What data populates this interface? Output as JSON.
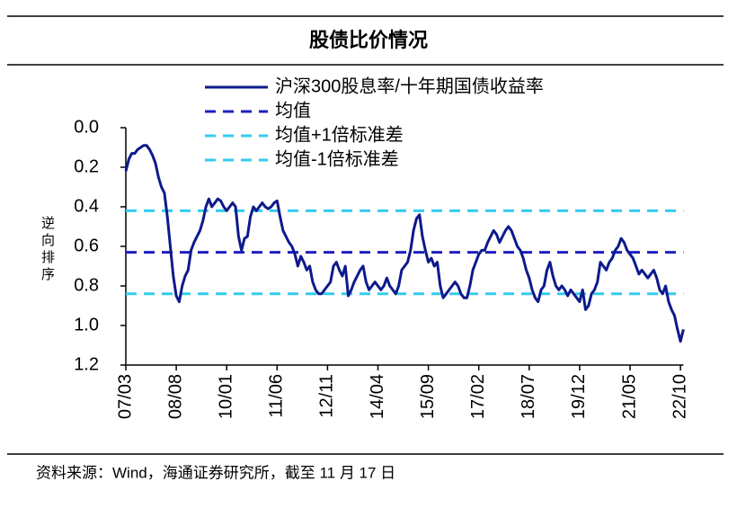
{
  "chart_data": {
    "type": "line",
    "title": "股债比价情况",
    "y_label": "逆向排序",
    "source": "资料来源：Wind，海通证券研究所，截至 11 月 17 日",
    "inverted_y": true,
    "ylim": [
      0,
      1.2
    ],
    "yticks": [
      {
        "value": 0,
        "label": "0.0"
      },
      0.2,
      0.4,
      0.6,
      0.8,
      {
        "value": 1,
        "label": "1.0"
      },
      1.2
    ],
    "x": [
      "07/03",
      "07/04",
      "07/05",
      "07/06",
      "07/07",
      "07/08",
      "07/09",
      "07/10",
      "07/11",
      "07/12",
      "08/01",
      "08/02",
      "08/03",
      "08/04",
      "08/05",
      "08/06",
      "08/07",
      "08/08",
      "08/09",
      "08/10",
      "08/11",
      "08/12",
      "09/01",
      "09/02",
      "09/03",
      "09/04",
      "09/05",
      "09/06",
      "09/07",
      "09/08",
      "09/09",
      "09/10",
      "09/11",
      "09/12",
      "10/01",
      "10/02",
      "10/03",
      "10/04",
      "10/05",
      "10/06",
      "10/07",
      "10/08",
      "10/09",
      "10/10",
      "10/11",
      "10/12",
      "11/01",
      "11/02",
      "11/03",
      "11/04",
      "11/05",
      "11/06",
      "11/07",
      "11/08",
      "11/09",
      "11/10",
      "11/11",
      "11/12",
      "12/01",
      "12/02",
      "12/03",
      "12/04",
      "12/05",
      "12/06",
      "12/07",
      "12/08",
      "12/09",
      "12/10",
      "12/11",
      "12/12",
      "13/01",
      "13/02",
      "13/03",
      "13/04",
      "13/05",
      "13/06",
      "13/07",
      "13/08",
      "13/09",
      "13/10",
      "13/11",
      "13/12",
      "14/01",
      "14/02",
      "14/03",
      "14/04",
      "14/05",
      "14/06",
      "14/07",
      "14/08",
      "14/09",
      "14/10",
      "14/11",
      "14/12",
      "15/01",
      "15/02",
      "15/03",
      "15/04",
      "15/05",
      "15/06",
      "15/07",
      "15/08",
      "15/09",
      "15/10",
      "15/11",
      "15/12",
      "16/01",
      "16/02",
      "16/03",
      "16/04",
      "16/05",
      "16/06",
      "16/07",
      "16/08",
      "16/09",
      "16/10",
      "16/11",
      "16/12",
      "17/01",
      "17/02",
      "17/03",
      "17/04",
      "17/05",
      "17/06",
      "17/07",
      "17/08",
      "17/09",
      "17/10",
      "17/11",
      "17/12",
      "18/01",
      "18/02",
      "18/03",
      "18/04",
      "18/05",
      "18/06",
      "18/07",
      "18/08",
      "18/09",
      "18/10",
      "18/11",
      "18/12",
      "19/01",
      "19/02",
      "19/03",
      "19/04",
      "19/05",
      "19/06",
      "19/07",
      "19/08",
      "19/09",
      "19/10",
      "19/11",
      "19/12",
      "20/01",
      "20/02",
      "20/03",
      "20/04",
      "20/05",
      "20/06",
      "20/07",
      "20/08",
      "20/09",
      "20/10",
      "20/11",
      "20/12",
      "21/01",
      "21/02",
      "21/03",
      "21/04",
      "21/05",
      "21/06",
      "21/07",
      "21/08",
      "21/09",
      "21/10",
      "21/11",
      "21/12",
      "22/01",
      "22/02",
      "22/03",
      "22/04",
      "22/05",
      "22/06",
      "22/07",
      "22/08",
      "22/09",
      "22/10",
      "22/11"
    ],
    "xticks": [
      "07/03",
      "08/08",
      "10/01",
      "11/06",
      "12/11",
      "14/04",
      "15/09",
      "17/02",
      "18/07",
      "19/12",
      "21/05",
      "22/10"
    ],
    "series": [
      {
        "name": "沪深300股息率/十年期国债收益率",
        "color": "#0d1a8c",
        "values": [
          0.22,
          0.16,
          0.13,
          0.13,
          0.11,
          0.1,
          0.09,
          0.09,
          0.11,
          0.14,
          0.18,
          0.25,
          0.3,
          0.33,
          0.45,
          0.6,
          0.75,
          0.85,
          0.88,
          0.8,
          0.75,
          0.72,
          0.62,
          0.58,
          0.55,
          0.52,
          0.47,
          0.4,
          0.36,
          0.4,
          0.38,
          0.36,
          0.37,
          0.4,
          0.42,
          0.4,
          0.38,
          0.4,
          0.55,
          0.62,
          0.56,
          0.55,
          0.45,
          0.4,
          0.42,
          0.4,
          0.38,
          0.4,
          0.41,
          0.4,
          0.38,
          0.37,
          0.45,
          0.52,
          0.55,
          0.58,
          0.6,
          0.64,
          0.7,
          0.65,
          0.68,
          0.72,
          0.7,
          0.78,
          0.82,
          0.84,
          0.84,
          0.82,
          0.8,
          0.78,
          0.7,
          0.68,
          0.72,
          0.75,
          0.7,
          0.85,
          0.82,
          0.78,
          0.75,
          0.72,
          0.7,
          0.78,
          0.82,
          0.8,
          0.78,
          0.8,
          0.82,
          0.8,
          0.76,
          0.8,
          0.82,
          0.84,
          0.8,
          0.72,
          0.7,
          0.68,
          0.62,
          0.52,
          0.46,
          0.44,
          0.55,
          0.62,
          0.68,
          0.66,
          0.7,
          0.68,
          0.8,
          0.86,
          0.84,
          0.82,
          0.8,
          0.78,
          0.8,
          0.84,
          0.86,
          0.86,
          0.8,
          0.72,
          0.68,
          0.64,
          0.62,
          0.62,
          0.58,
          0.55,
          0.52,
          0.54,
          0.58,
          0.55,
          0.52,
          0.5,
          0.52,
          0.56,
          0.6,
          0.62,
          0.66,
          0.72,
          0.76,
          0.82,
          0.86,
          0.88,
          0.82,
          0.8,
          0.72,
          0.68,
          0.75,
          0.8,
          0.82,
          0.8,
          0.82,
          0.85,
          0.82,
          0.84,
          0.86,
          0.88,
          0.82,
          0.92,
          0.9,
          0.84,
          0.82,
          0.78,
          0.68,
          0.7,
          0.72,
          0.68,
          0.66,
          0.62,
          0.6,
          0.56,
          0.58,
          0.62,
          0.64,
          0.66,
          0.7,
          0.74,
          0.72,
          0.74,
          0.76,
          0.74,
          0.72,
          0.76,
          0.82,
          0.84,
          0.8,
          0.88,
          0.92,
          0.95,
          1.02,
          1.08,
          1.02
        ]
      }
    ],
    "reference_lines": [
      {
        "name": "均值",
        "color": "#1f1fc0",
        "value": 0.63
      },
      {
        "name": "均值+1倍标准差",
        "color": "#33ccee",
        "value": 0.42
      },
      {
        "name": "均值-1倍标准差",
        "color": "#33ccee",
        "value": 0.84
      }
    ]
  }
}
